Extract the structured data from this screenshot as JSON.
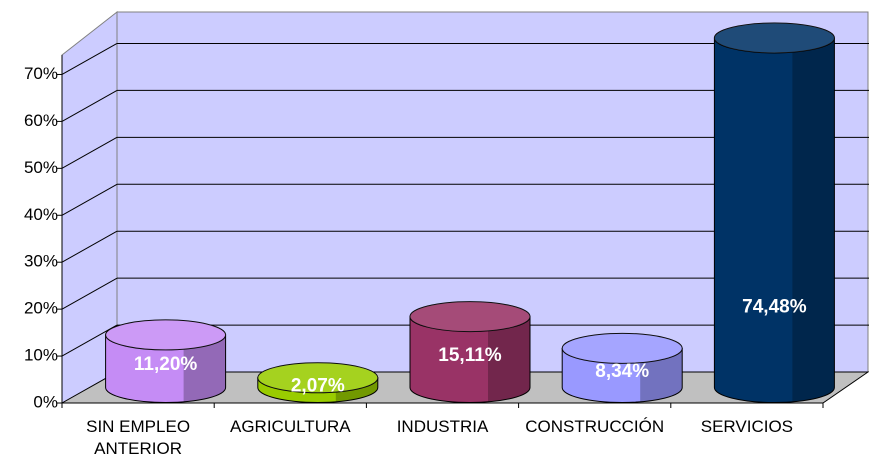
{
  "chart_data": {
    "type": "bar3d",
    "categories": [
      "SIN EMPLEO ANTERIOR",
      "AGRICULTURA",
      "INDUSTRIA",
      "CONSTRUCCIÓN",
      "SERVICIOS"
    ],
    "values": [
      11.2,
      2.07,
      15.11,
      8.34,
      74.48
    ],
    "value_labels": [
      "11,20%",
      "2,07%",
      "15,11%",
      "8,34%",
      "74,48%"
    ],
    "colors": [
      "#c58cf5",
      "#99cc00",
      "#993366",
      "#9999ff",
      "#003366"
    ],
    "ylim": [
      0,
      75
    ],
    "yticks": [
      {
        "value": 0,
        "label": "0%"
      },
      {
        "value": 10,
        "label": "10%"
      },
      {
        "value": 20,
        "label": "20%"
      },
      {
        "value": 30,
        "label": "30%"
      },
      {
        "value": 40,
        "label": "40%"
      },
      {
        "value": 50,
        "label": "50%"
      },
      {
        "value": 60,
        "label": "60%"
      },
      {
        "value": 70,
        "label": "70%"
      }
    ],
    "grid": true
  }
}
